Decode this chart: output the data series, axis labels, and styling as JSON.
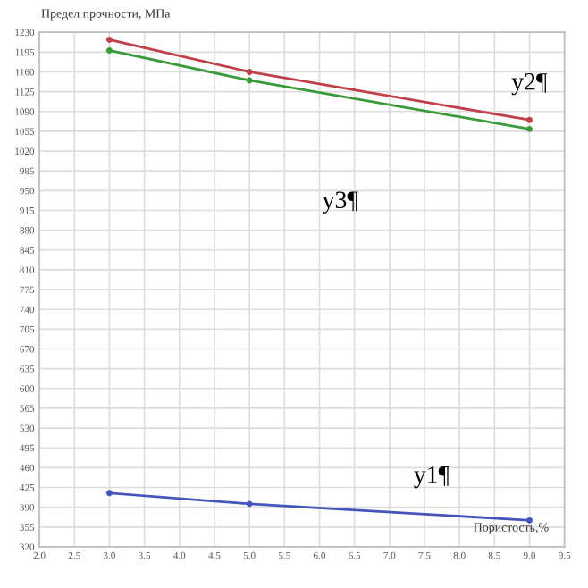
{
  "chart_data": {
    "type": "line",
    "xlabel": "Пористость,%",
    "ylabel": "Предел прочности, МПа",
    "x": [
      3,
      5,
      9
    ],
    "series": [
      {
        "color": "#4455bb",
        "values": [
          415,
          396,
          367
        ]
      },
      {
        "color": "#c0404a",
        "values": [
          1217,
          1160,
          1075
        ]
      },
      {
        "color": "#3a9a3a",
        "values": [
          1198,
          1145,
          1059
        ]
      }
    ],
    "annotations": [
      "y1¶",
      "y2¶",
      "y3¶"
    ],
    "xlim": [
      2.0,
      9.5
    ],
    "ylim": [
      320,
      1230
    ],
    "xticks": [
      {
        "value": 2.0,
        "label": "2.0"
      },
      {
        "value": 2.5,
        "label": "2.5"
      },
      {
        "value": 3.0,
        "label": "3.0"
      },
      {
        "value": 3.5,
        "label": "3.5"
      },
      {
        "value": 4.0,
        "label": "4.0"
      },
      {
        "value": 4.5,
        "label": "4.5"
      },
      {
        "value": 5.0,
        "label": "5.0"
      },
      {
        "value": 5.5,
        "label": "5.5"
      },
      {
        "value": 6.0,
        "label": "6.0"
      },
      {
        "value": 6.5,
        "label": "6.5"
      },
      {
        "value": 7.0,
        "label": "7.0"
      },
      {
        "value": 7.5,
        "label": "7.5"
      },
      {
        "value": 8.0,
        "label": "8.0"
      },
      {
        "value": 8.5,
        "label": "8.5"
      },
      {
        "value": 9.0,
        "label": "9.0"
      },
      {
        "value": 9.5,
        "label": "9.5"
      }
    ],
    "yticks": [
      320,
      355,
      390,
      425,
      460,
      495,
      530,
      565,
      600,
      635,
      670,
      705,
      740,
      775,
      810,
      845,
      880,
      915,
      950,
      985,
      1020,
      1055,
      1090,
      1125,
      1160,
      1195,
      1230
    ],
    "grid": true,
    "marker": "circle",
    "line_style": "solid"
  }
}
